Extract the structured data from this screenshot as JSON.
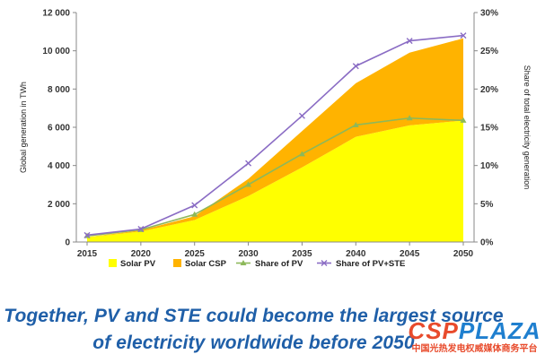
{
  "chart_data": {
    "type": "area",
    "x": [
      2015,
      2020,
      2025,
      2030,
      2035,
      2040,
      2045,
      2050
    ],
    "ylabel": "Global generation in TWh",
    "y2label": "Share of total electricity generation",
    "ylim": [
      0,
      12000
    ],
    "y2lim": [
      0,
      30
    ],
    "y_ticks": [
      "0",
      "2 000",
      "4 000",
      "6 000",
      "8 000",
      "10 000",
      "12 000"
    ],
    "y2_ticks": [
      "0%",
      "5%",
      "10%",
      "15%",
      "20%",
      "25%",
      "30%"
    ],
    "x_ticks": [
      "2015",
      "2020",
      "2025",
      "2030",
      "2035",
      "2040",
      "2045",
      "2050"
    ],
    "legend_position": "bottom",
    "grid": false,
    "series": [
      {
        "name": "Solar PV",
        "kind": "stacked-area",
        "axis": "left",
        "color": "#ffff00",
        "values": [
          250,
          550,
          1150,
          2400,
          3900,
          5500,
          6100,
          6350
        ]
      },
      {
        "name": "Solar CSP",
        "kind": "stacked-area",
        "axis": "left",
        "color": "#ffb300",
        "values": [
          10,
          60,
          200,
          900,
          1900,
          2800,
          3800,
          4300
        ]
      },
      {
        "name": "Share of PV",
        "kind": "line",
        "axis": "right",
        "color": "#8db85a",
        "marker": "triangle",
        "values": [
          0.8,
          1.6,
          3.6,
          7.5,
          11.5,
          15.3,
          16.2,
          15.9
        ]
      },
      {
        "name": "Share of PV+STE",
        "kind": "line",
        "axis": "right",
        "color": "#8a6cc4",
        "marker": "x",
        "values": [
          0.9,
          1.7,
          4.8,
          10.3,
          16.5,
          23.0,
          26.3,
          27.0
        ]
      }
    ]
  },
  "caption": {
    "line1": "Together, PV and STE could become the largest source",
    "line2": "of electricity worldwide before 2050"
  },
  "watermark": {
    "logo_csp": "CSP",
    "logo_plaza": "PLAZA",
    "subtitle": "中国光热发电权威媒体商务平台"
  }
}
